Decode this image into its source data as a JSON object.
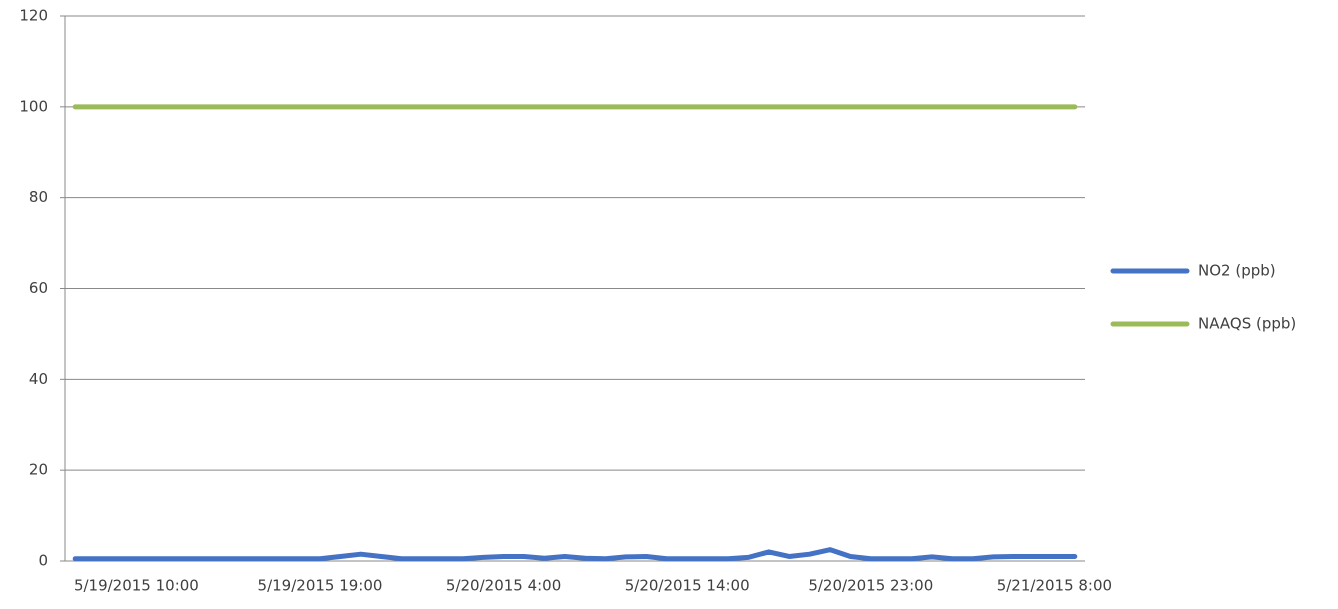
{
  "chart_data": {
    "type": "line",
    "categories": [
      null,
      null,
      null,
      "5/19/2015 10:00",
      null,
      null,
      null,
      null,
      null,
      null,
      null,
      null,
      "5/19/2015 19:00",
      null,
      null,
      null,
      null,
      null,
      null,
      null,
      null,
      "5/20/2015 4:00",
      null,
      null,
      null,
      null,
      null,
      null,
      null,
      null,
      "5/20/2015 14:00",
      null,
      null,
      null,
      null,
      null,
      null,
      null,
      null,
      "5/20/2015 23:00",
      null,
      null,
      null,
      null,
      null,
      null,
      null,
      null,
      "5/21/2015 8:00",
      null
    ],
    "series": [
      {
        "name": "NO2 (ppb)",
        "color": "#4472c4",
        "values": [
          0.5,
          0.5,
          0.5,
          0.5,
          0.5,
          0.5,
          0.5,
          0.5,
          0.5,
          0.5,
          0.5,
          0.5,
          0.5,
          1.0,
          1.5,
          1.0,
          0.5,
          0.5,
          0.5,
          0.5,
          0.8,
          1.0,
          1.0,
          0.6,
          1.0,
          0.6,
          0.5,
          0.9,
          1.0,
          0.5,
          0.5,
          0.5,
          0.5,
          0.8,
          2.0,
          1.0,
          1.5,
          2.5,
          1.0,
          0.5,
          0.5,
          0.5,
          0.9,
          0.5,
          0.5,
          0.9,
          1.0,
          1.0,
          1.0,
          1.0
        ]
      },
      {
        "name": "NAAQS (ppb)",
        "color": "#9bbb59",
        "values": [
          100,
          100,
          100,
          100,
          100,
          100,
          100,
          100,
          100,
          100,
          100,
          100,
          100,
          100,
          100,
          100,
          100,
          100,
          100,
          100,
          100,
          100,
          100,
          100,
          100,
          100,
          100,
          100,
          100,
          100,
          100,
          100,
          100,
          100,
          100,
          100,
          100,
          100,
          100,
          100,
          100,
          100,
          100,
          100,
          100,
          100,
          100,
          100,
          100,
          100
        ]
      }
    ],
    "ylim": [
      0,
      120
    ],
    "yticks": [
      0,
      20,
      40,
      60,
      80,
      100,
      120
    ],
    "grid": true,
    "legend": "right"
  }
}
